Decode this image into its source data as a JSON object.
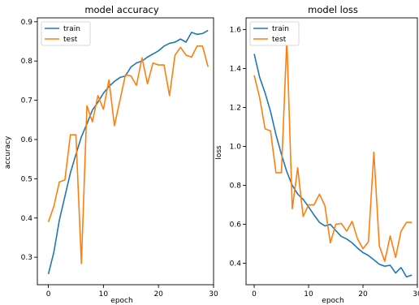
{
  "chart_data": [
    {
      "type": "line",
      "title": "model accuracy",
      "xlabel": "epoch",
      "ylabel": "accuracy",
      "xlim": [
        -2,
        30
      ],
      "ylim": [
        0.23,
        0.91
      ],
      "xticks": [
        "0",
        "10",
        "20",
        "30"
      ],
      "yticks": [
        "0.3",
        "0.4",
        "0.5",
        "0.6",
        "0.7",
        "0.8",
        "0.9"
      ],
      "legend_position": "top-left",
      "grid": false,
      "x": [
        0,
        1,
        2,
        3,
        4,
        5,
        6,
        7,
        8,
        9,
        10,
        11,
        12,
        13,
        14,
        15,
        16,
        17,
        18,
        19,
        20,
        21,
        22,
        23,
        24,
        25,
        26,
        27,
        28,
        29
      ],
      "series": [
        {
          "name": "train",
          "color": "#1f77b4",
          "values": [
            0.257,
            0.313,
            0.395,
            0.455,
            0.515,
            0.562,
            0.607,
            0.64,
            0.675,
            0.695,
            0.718,
            0.735,
            0.748,
            0.758,
            0.762,
            0.785,
            0.795,
            0.8,
            0.81,
            0.818,
            0.826,
            0.838,
            0.845,
            0.848,
            0.856,
            0.848,
            0.873,
            0.868,
            0.87,
            0.878
          ]
        },
        {
          "name": "test",
          "color": "#ff7f0e",
          "values": [
            0.39,
            0.43,
            0.492,
            0.497,
            0.612,
            0.612,
            0.284,
            0.686,
            0.645,
            0.712,
            0.677,
            0.752,
            0.635,
            0.7,
            0.765,
            0.762,
            0.738,
            0.808,
            0.742,
            0.795,
            0.79,
            0.79,
            0.712,
            0.815,
            0.835,
            0.815,
            0.81,
            0.838,
            0.838,
            0.785
          ]
        }
      ]
    },
    {
      "type": "line",
      "title": "model loss",
      "xlabel": "epoch",
      "ylabel": "loss",
      "xlim": [
        -1.5,
        30
      ],
      "ylim": [
        0.29,
        1.66
      ],
      "xticks": [
        "0",
        "10",
        "20",
        "30"
      ],
      "yticks": [
        "0.4",
        "0.6",
        "0.8",
        "1.0",
        "1.2",
        "1.4",
        "1.6"
      ],
      "legend_position": "top-left",
      "grid": false,
      "x": [
        0,
        1,
        2,
        3,
        4,
        5,
        6,
        7,
        8,
        9,
        10,
        11,
        12,
        13,
        14,
        15,
        16,
        17,
        18,
        19,
        20,
        21,
        22,
        23,
        24,
        25,
        26,
        27,
        28,
        29
      ],
      "series": [
        {
          "name": "train",
          "color": "#1f77b4",
          "values": [
            1.475,
            1.355,
            1.275,
            1.18,
            1.06,
            0.96,
            0.87,
            0.8,
            0.755,
            0.728,
            0.69,
            0.648,
            0.61,
            0.592,
            0.6,
            0.568,
            0.538,
            0.525,
            0.505,
            0.478,
            0.455,
            0.44,
            0.418,
            0.395,
            0.385,
            0.39,
            0.35,
            0.378,
            0.33,
            0.34
          ]
        },
        {
          "name": "test",
          "color": "#ff7f0e",
          "values": [
            1.365,
            1.25,
            1.09,
            1.08,
            0.865,
            0.865,
            1.55,
            0.68,
            0.89,
            0.64,
            0.7,
            0.7,
            0.755,
            0.695,
            0.505,
            0.6,
            0.605,
            0.565,
            0.615,
            0.525,
            0.475,
            0.51,
            0.97,
            0.49,
            0.41,
            0.54,
            0.43,
            0.565,
            0.61,
            0.61
          ]
        }
      ]
    }
  ]
}
